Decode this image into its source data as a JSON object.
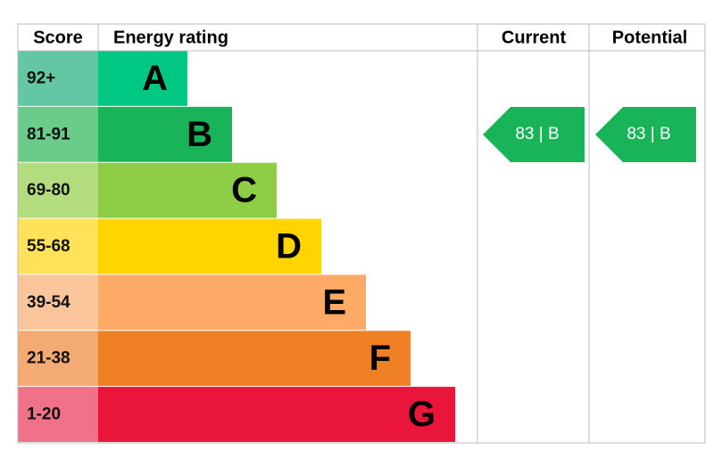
{
  "header": {
    "score": "Score",
    "rating": "Energy rating",
    "current": "Current",
    "potential": "Potential"
  },
  "bands": [
    {
      "score": "92+",
      "rating": "A"
    },
    {
      "score": "81-91",
      "rating": "B"
    },
    {
      "score": "69-80",
      "rating": "C"
    },
    {
      "score": "55-68",
      "rating": "D"
    },
    {
      "score": "39-54",
      "rating": "E"
    },
    {
      "score": "21-38",
      "rating": "F"
    },
    {
      "score": "1-20",
      "rating": "G"
    }
  ],
  "current": {
    "label": "83 | B"
  },
  "potential": {
    "label": "83 | B"
  }
}
